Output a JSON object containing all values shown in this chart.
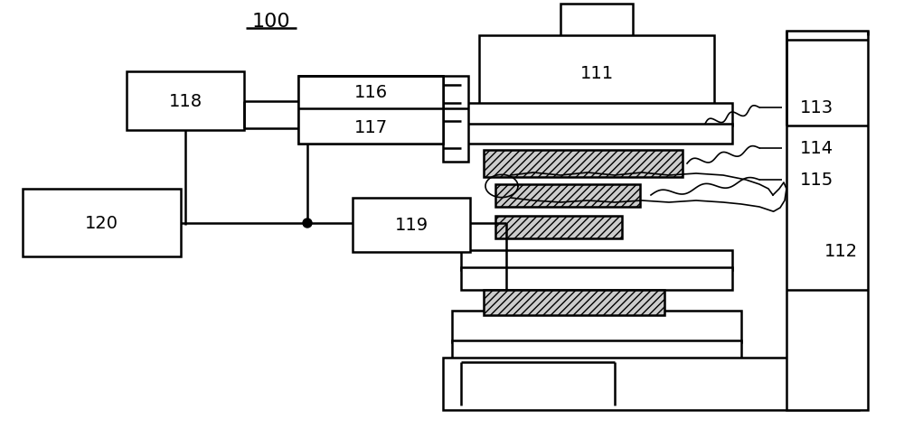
{
  "bg_color": "#ffffff",
  "lw": 1.8,
  "label_100": "100",
  "label_111": "111",
  "label_112": "112",
  "label_113": "113",
  "label_114": "114",
  "label_115": "115",
  "label_116": "116",
  "label_117": "117",
  "label_118": "118",
  "label_119": "119",
  "label_120": "120",
  "font_size": 14
}
